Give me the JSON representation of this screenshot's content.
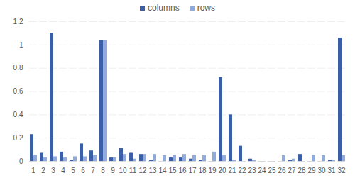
{
  "chart_data": {
    "type": "bar",
    "categories": [
      "1",
      "2",
      "3",
      "4",
      "5",
      "6",
      "7",
      "8",
      "9",
      "10",
      "11",
      "12",
      "13",
      "14",
      "15",
      "16",
      "17",
      "18",
      "19",
      "20",
      "21",
      "22",
      "23",
      "24",
      "25",
      "26",
      "27",
      "28",
      "29",
      "30",
      "31",
      "32"
    ],
    "series": [
      {
        "name": "columns",
        "color": "#3b5ea6",
        "values": [
          0.23,
          0.07,
          1.1,
          0.08,
          0.01,
          0.15,
          0.09,
          1.04,
          0.03,
          0.11,
          0.07,
          0.06,
          0.01,
          0.0,
          0.03,
          0.03,
          0.02,
          0.01,
          0.0,
          0.72,
          0.4,
          0.13,
          0.02,
          0.0,
          0.0,
          0.0,
          0.01,
          0.06,
          0.0,
          0.0,
          0.01,
          1.06
        ]
      },
      {
        "name": "rows",
        "color": "#8faadc",
        "values": [
          0.05,
          0.03,
          0.04,
          0.03,
          0.04,
          0.04,
          0.05,
          1.04,
          0.03,
          0.06,
          0.02,
          0.06,
          0.06,
          0.05,
          0.05,
          0.06,
          0.05,
          0.05,
          0.08,
          0.05,
          0.01,
          0.0,
          0.01,
          0.0,
          0.0,
          0.05,
          0.02,
          0.0,
          0.05,
          0.05,
          0.01,
          0.05
        ]
      }
    ],
    "ylim": [
      0,
      1.2
    ],
    "yticks": [
      0,
      0.2,
      0.4,
      0.6,
      0.8,
      1,
      1.2
    ],
    "grid": true,
    "legend": "top"
  }
}
